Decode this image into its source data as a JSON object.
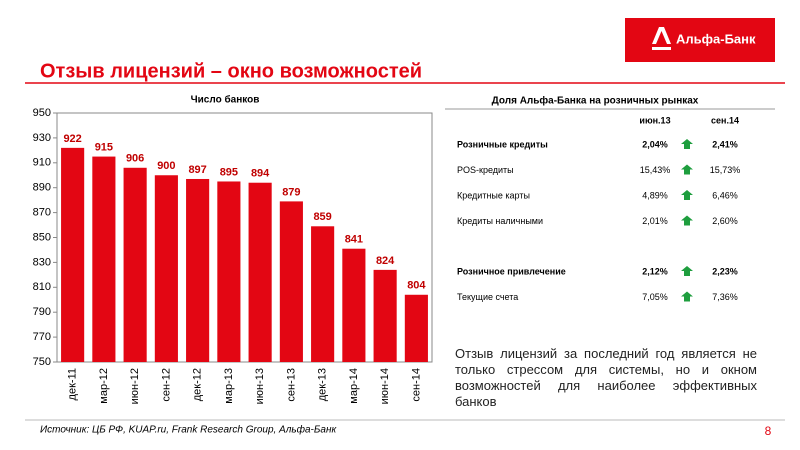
{
  "logo": {
    "text": "Альфа-Банк"
  },
  "header": {
    "title": "Отзыв лицензий – окно возможностей"
  },
  "chart_data": {
    "type": "bar",
    "title": "Число банков",
    "categories": [
      "дек-11",
      "мар-12",
      "июн-12",
      "сен-12",
      "дек-12",
      "мар-13",
      "июн-13",
      "сен-13",
      "дек-13",
      "мар-14",
      "июн-14",
      "сен-14"
    ],
    "values": [
      922,
      915,
      906,
      900,
      897,
      895,
      894,
      879,
      859,
      841,
      824,
      804
    ],
    "color": "#e30613",
    "label_color": "#c00000",
    "ylim": [
      750,
      950
    ],
    "yticks": [
      750,
      770,
      790,
      810,
      830,
      850,
      870,
      890,
      910,
      930,
      950
    ]
  },
  "table": {
    "title": "Доля Альфа-Банка на розничных рынках",
    "columns": [
      "июн.13",
      "сен.14"
    ],
    "groups": [
      {
        "rows": [
          [
            "Розничные кредиты",
            "2,04%",
            "2,41%"
          ],
          [
            "POS-кредиты",
            "15,43%",
            "15,73%"
          ],
          [
            "Кредитные карты",
            "4,89%",
            "6,46%"
          ],
          [
            "Кредиты наличными",
            "2,01%",
            "2,60%"
          ]
        ]
      },
      {
        "rows": [
          [
            "Розничное привлечение",
            "2,12%",
            "2,23%"
          ],
          [
            "Текущие счета",
            "7,05%",
            "7,36%"
          ]
        ]
      }
    ]
  },
  "text": "Отзыв лицензий за последний год является не только стрессом для системы, но и окном возможностей для наиболее эффективных банков",
  "footer": {
    "source": "Источник: ЦБ РФ, KUAP.ru, Frank Research Group, Альфа-Банк",
    "page": "8"
  }
}
